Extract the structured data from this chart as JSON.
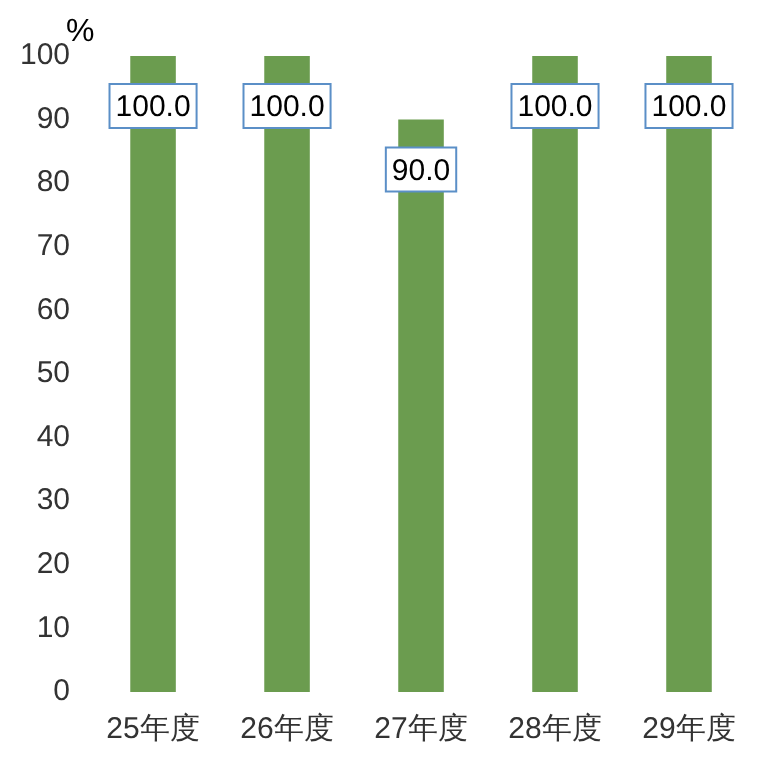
{
  "chart_data": {
    "type": "bar",
    "ylabel": "%",
    "categories": [
      "25年度",
      "26年度",
      "27年度",
      "28年度",
      "29年度"
    ],
    "values": [
      100.0,
      100.0,
      90.0,
      100.0,
      100.0
    ],
    "color": "#6b9c4f",
    "ylim": [
      0,
      100
    ],
    "yticks": [
      0,
      10,
      20,
      30,
      40,
      50,
      60,
      70,
      80,
      90,
      100
    ],
    "grid": false,
    "legend": false,
    "value_labels": [
      "100.0",
      "100.0",
      "90.0",
      "100.0",
      "100.0"
    ]
  }
}
